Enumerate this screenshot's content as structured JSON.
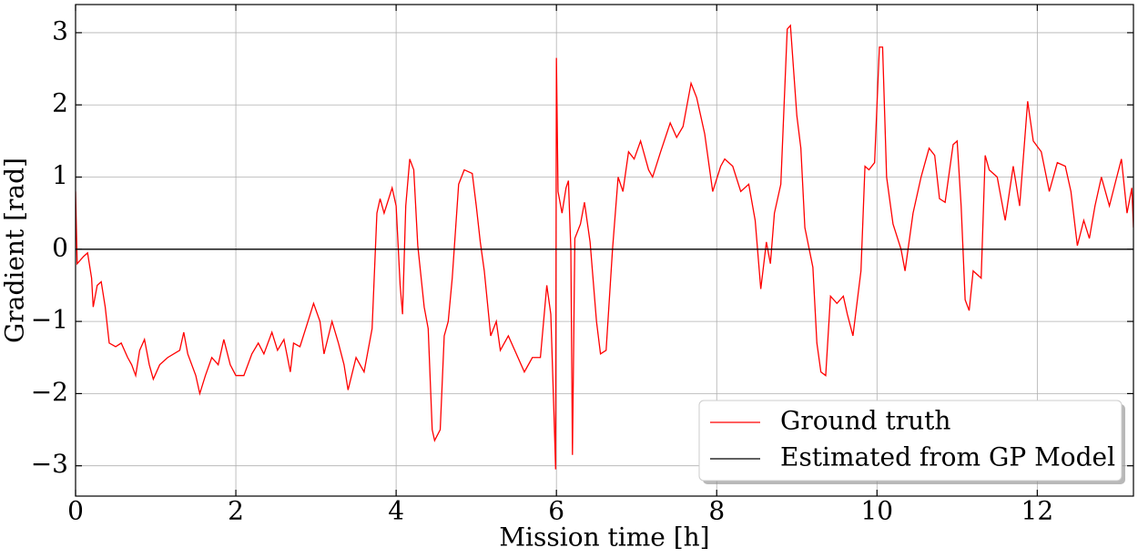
{
  "chart_data": {
    "type": "line",
    "xlabel": "Mission time [h]",
    "ylabel": "Gradient [rad]",
    "xlim": [
      0,
      13.2
    ],
    "ylim": [
      -3.42,
      3.39
    ],
    "xticks": [
      0,
      2,
      4,
      6,
      8,
      10,
      12
    ],
    "yticks": [
      {
        "value": -3,
        "label": "−3"
      },
      {
        "value": -2,
        "label": "−2"
      },
      {
        "value": -1,
        "label": "−1"
      },
      0,
      1,
      2,
      3
    ],
    "grid": true,
    "legend": "lower right",
    "series": [
      {
        "name": "Ground truth",
        "color": "#ff0000",
        "x": [
          0,
          0.02,
          0.1,
          0.15,
          0.2,
          0.22,
          0.27,
          0.32,
          0.37,
          0.42,
          0.5,
          0.57,
          0.65,
          0.7,
          0.75,
          0.8,
          0.86,
          0.92,
          0.97,
          1.05,
          1.15,
          1.3,
          1.35,
          1.4,
          1.5,
          1.55,
          1.62,
          1.7,
          1.78,
          1.85,
          1.93,
          2.0,
          2.1,
          2.2,
          2.28,
          2.35,
          2.45,
          2.52,
          2.6,
          2.68,
          2.72,
          2.8,
          2.9,
          2.97,
          3.05,
          3.1,
          3.2,
          3.28,
          3.35,
          3.4,
          3.5,
          3.6,
          3.7,
          3.76,
          3.8,
          3.85,
          3.95,
          4.0,
          4.05,
          4.08,
          4.12,
          4.17,
          4.22,
          4.27,
          4.35,
          4.4,
          4.45,
          4.48,
          4.55,
          4.6,
          4.65,
          4.7,
          4.78,
          4.85,
          4.95,
          5.0,
          5.05,
          5.1,
          5.18,
          5.25,
          5.3,
          5.4,
          5.5,
          5.6,
          5.7,
          5.8,
          5.88,
          5.93,
          5.97,
          5.99,
          6.0,
          6.02,
          6.07,
          6.12,
          6.15,
          6.18,
          6.2,
          6.23,
          6.3,
          6.35,
          6.42,
          6.5,
          6.55,
          6.62,
          6.7,
          6.77,
          6.83,
          6.9,
          6.97,
          7.05,
          7.15,
          7.2,
          7.3,
          7.42,
          7.5,
          7.58,
          7.68,
          7.75,
          7.85,
          7.95,
          8.05,
          8.1,
          8.2,
          8.3,
          8.4,
          8.48,
          8.55,
          8.62,
          8.67,
          8.72,
          8.8,
          8.88,
          8.92,
          9.0,
          9.05,
          9.1,
          9.2,
          9.25,
          9.3,
          9.36,
          9.42,
          9.5,
          9.58,
          9.63,
          9.7,
          9.8,
          9.85,
          9.9,
          9.97,
          10.03,
          10.07,
          10.12,
          10.2,
          10.3,
          10.35,
          10.45,
          10.55,
          10.65,
          10.72,
          10.78,
          10.85,
          10.95,
          11.0,
          11.05,
          11.1,
          11.15,
          11.2,
          11.3,
          11.35,
          11.4,
          11.5,
          11.6,
          11.7,
          11.78,
          11.88,
          11.95,
          12.05,
          12.15,
          12.25,
          12.35,
          12.42,
          12.5,
          12.58,
          12.65,
          12.72,
          12.8,
          12.9,
          12.98,
          13.05,
          13.12,
          13.18,
          13.2
        ],
        "values": [
          0.8,
          -0.2,
          -0.1,
          -0.05,
          -0.4,
          -0.8,
          -0.5,
          -0.45,
          -0.8,
          -1.3,
          -1.35,
          -1.3,
          -1.5,
          -1.6,
          -1.75,
          -1.4,
          -1.25,
          -1.6,
          -1.8,
          -1.6,
          -1.5,
          -1.4,
          -1.15,
          -1.45,
          -1.75,
          -2.0,
          -1.75,
          -1.5,
          -1.6,
          -1.25,
          -1.6,
          -1.75,
          -1.75,
          -1.45,
          -1.3,
          -1.45,
          -1.15,
          -1.4,
          -1.25,
          -1.7,
          -1.3,
          -1.35,
          -1.0,
          -0.75,
          -1.0,
          -1.45,
          -1.0,
          -1.3,
          -1.6,
          -1.95,
          -1.5,
          -1.7,
          -1.1,
          0.5,
          0.7,
          0.5,
          0.85,
          0.6,
          -0.5,
          -0.9,
          0.6,
          1.25,
          1.1,
          0.05,
          -0.8,
          -1.1,
          -2.5,
          -2.65,
          -2.5,
          -1.2,
          -1.0,
          -0.4,
          0.9,
          1.1,
          1.05,
          0.6,
          0.1,
          -0.3,
          -1.2,
          -1.0,
          -1.4,
          -1.2,
          -1.45,
          -1.7,
          -1.5,
          -1.5,
          -0.5,
          -0.9,
          -2.3,
          -3.05,
          2.65,
          0.8,
          0.5,
          0.85,
          0.95,
          0.0,
          -2.85,
          0.15,
          0.35,
          0.65,
          0.1,
          -1.0,
          -1.45,
          -1.4,
          0.0,
          1.0,
          0.8,
          1.35,
          1.25,
          1.5,
          1.1,
          1.0,
          1.35,
          1.75,
          1.55,
          1.7,
          2.3,
          2.1,
          1.6,
          0.8,
          1.15,
          1.25,
          1.15,
          0.8,
          0.9,
          0.4,
          -0.55,
          0.1,
          -0.2,
          0.5,
          0.9,
          3.05,
          3.1,
          1.85,
          1.4,
          0.3,
          -0.25,
          -1.3,
          -1.7,
          -1.75,
          -0.65,
          -0.75,
          -0.65,
          -0.9,
          -1.2,
          -0.3,
          1.15,
          1.1,
          1.2,
          2.8,
          2.8,
          1.0,
          0.35,
          0.0,
          -0.3,
          0.5,
          1.0,
          1.4,
          1.3,
          0.7,
          0.65,
          1.45,
          1.5,
          0.6,
          -0.7,
          -0.85,
          -0.3,
          -0.4,
          1.3,
          1.1,
          1.0,
          0.4,
          1.15,
          0.6,
          2.05,
          1.5,
          1.35,
          0.8,
          1.2,
          1.15,
          0.8,
          0.05,
          0.4,
          0.15,
          0.6,
          1.0,
          0.6,
          0.95,
          1.25,
          0.5,
          0.85,
          0.3
        ]
      },
      {
        "name": "Estimated from GP Model",
        "color": "#000000",
        "x": [
          0,
          13.2
        ],
        "values": [
          0,
          0
        ]
      }
    ]
  }
}
